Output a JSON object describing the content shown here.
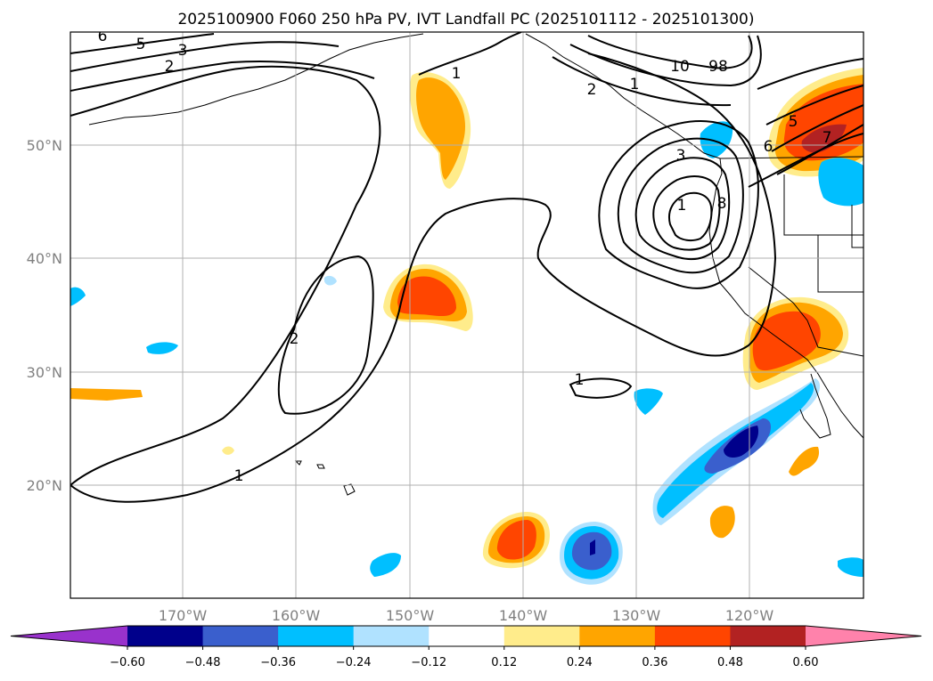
{
  "title": "2025100900 F060 250 hPa PV, IVT Landfall PC (2025101112 - 2025101300)",
  "map": {
    "projection": "PlateCarree",
    "lon_range": [
      -180,
      -110
    ],
    "lat_range": [
      10,
      60
    ],
    "gridlines": true,
    "lat_tick_labels": [
      "50°N",
      "40°N",
      "30°N",
      "20°N"
    ],
    "lat_tick_values": [
      50,
      40,
      30,
      20
    ],
    "lon_tick_labels": [
      "170°W",
      "160°W",
      "150°W",
      "140°W",
      "130°W",
      "120°W"
    ],
    "lon_tick_values": [
      -170,
      -160,
      -150,
      -140,
      -130,
      -120
    ]
  },
  "colorbar": {
    "extend": "both",
    "tick_labels": [
      "−0.60",
      "−0.48",
      "−0.36",
      "−0.24",
      "−0.12",
      "0.12",
      "0.24",
      "0.36",
      "0.48",
      "0.60"
    ],
    "colors": [
      "#9932cc",
      "#00008b",
      "#3a5fcd",
      "#00bfff",
      "#b0e2ff",
      "#ffffff",
      "#ffec8b",
      "#ffa500",
      "#ff4500",
      "#b22222",
      "#ff82ab"
    ]
  },
  "pv_contour_labels": [
    "1",
    "1",
    "2",
    "2",
    "3",
    "5",
    "6",
    "1",
    "1",
    "3",
    "8",
    "10",
    "98",
    "2",
    "1",
    "5",
    "6",
    "7"
  ]
}
